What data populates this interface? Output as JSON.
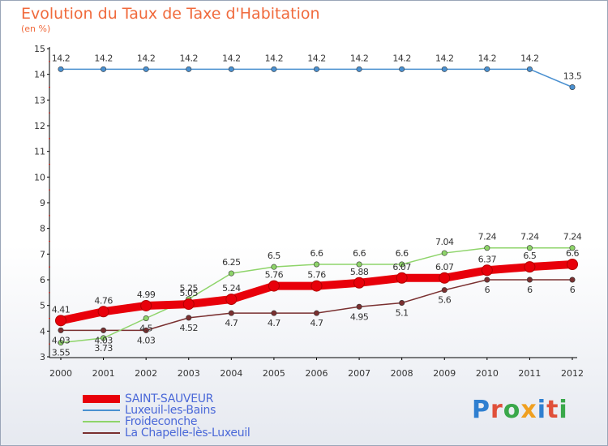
{
  "header": {
    "title": "Evolution du Taux de Taxe d'Habitation",
    "subtitle": "(en %)"
  },
  "logo": {
    "text": "Proxiti",
    "colors": [
      "#2f7fd0",
      "#e0503a",
      "#3aa84a",
      "#f0a020",
      "#2f7fd0",
      "#e0503a",
      "#3aa84a"
    ]
  },
  "chart_data": {
    "type": "line",
    "title": "Evolution du Taux de Taxe d'Habitation",
    "ylabel": "(en %)",
    "xlabel": "",
    "categories": [
      "2000",
      "2001",
      "2002",
      "2003",
      "2004",
      "2005",
      "2006",
      "2007",
      "2008",
      "2009",
      "2010",
      "2011",
      "2012"
    ],
    "ylim": [
      3,
      15
    ],
    "yticks": [
      3,
      4,
      5,
      6,
      7,
      8,
      9,
      10,
      11,
      12,
      13,
      14,
      15
    ],
    "grid": false,
    "legend_position": "bottom-left",
    "series": [
      {
        "name": "SAINT-SAUVEUR",
        "color": "#e8000a",
        "values": [
          4.41,
          4.76,
          4.99,
          5.05,
          5.24,
          5.76,
          5.76,
          5.88,
          6.07,
          6.07,
          6.37,
          6.5,
          6.6
        ],
        "labels": [
          "4.41",
          "4.76",
          "4.99",
          "5.05",
          "5.24",
          "5.76",
          "5.76",
          "5.88",
          "6.07",
          "6.07",
          "6.37",
          "6.5",
          "6.6"
        ]
      },
      {
        "name": "Luxeuil-les-Bains",
        "color": "#4a90d0",
        "values": [
          14.2,
          14.2,
          14.2,
          14.2,
          14.2,
          14.2,
          14.2,
          14.2,
          14.2,
          14.2,
          14.2,
          14.2,
          13.5
        ],
        "labels": [
          "14.2",
          "14.2",
          "14.2",
          "14.2",
          "14.2",
          "14.2",
          "14.2",
          "14.2",
          "14.2",
          "14.2",
          "14.2",
          "14.2",
          "13.5"
        ]
      },
      {
        "name": "Froideconche",
        "color": "#8ed46a",
        "values": [
          3.55,
          3.73,
          4.5,
          5.25,
          6.25,
          6.5,
          6.6,
          6.6,
          6.6,
          7.04,
          7.24,
          7.24,
          7.24
        ],
        "labels": [
          "3.55",
          "3.73",
          "4.5",
          "5.25",
          "6.25",
          "6.5",
          "6.6",
          "6.6",
          "6.6",
          "7.04",
          "7.24",
          "7.24",
          "7.24"
        ]
      },
      {
        "name": "La Chapelle-lès-Luxeuil",
        "color": "#7a3030",
        "values": [
          4.03,
          4.03,
          4.03,
          4.52,
          4.7,
          4.7,
          4.7,
          4.95,
          5.1,
          5.6,
          6.0,
          6.0,
          6.0
        ],
        "labels": [
          "4.03",
          "4.03",
          "4.03",
          "4.52",
          "4.7",
          "4.7",
          "4.7",
          "4.95",
          "5.1",
          "5.6",
          "6",
          "6",
          "6"
        ]
      }
    ]
  }
}
